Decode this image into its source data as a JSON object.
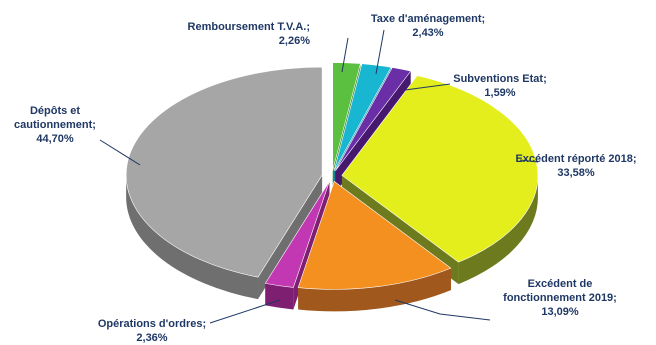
{
  "chart_data": {
    "type": "pie",
    "title": "",
    "slices": [
      {
        "name": "Remboursement T.V.A.",
        "value": 2.26,
        "label": "2,26%",
        "color": "#5bbf3f",
        "side": "#3e8c2a"
      },
      {
        "name": "Taxe d'aménagement",
        "value": 2.43,
        "label": "2,43%",
        "color": "#19b6d2",
        "side": "#0f8399"
      },
      {
        "name": "Subventions Etat",
        "value": 1.59,
        "label": "1,59%",
        "color": "#6a2ea6",
        "side": "#46196f"
      },
      {
        "name": "Excédent réporté 2018",
        "value": 33.58,
        "label": "33,58%",
        "color": "#e3ee1c",
        "side": "#6d7b1e"
      },
      {
        "name": "Excédent de fonctionnement 2019",
        "value": 13.09,
        "label": "13,09%",
        "color": "#f4901f",
        "side": "#a0581c"
      },
      {
        "name": "Opérations d'ordres",
        "value": 2.36,
        "label": "2,36%",
        "color": "#c238b2",
        "side": "#7e1f72"
      },
      {
        "name": "Dépôts et cautionnement",
        "value": 44.7,
        "label": "44,70%",
        "color": "#a6a6a6",
        "side": "#6f6f6f"
      }
    ],
    "label_lines": [
      [
        "Remboursement T.V.A.;",
        "2,26%"
      ],
      [
        "Taxe d'aménagement;",
        "2,43%"
      ],
      [
        "Subventions Etat;",
        "1,59%"
      ],
      [
        "Excédent réporté 2018;",
        "33,58%"
      ],
      [
        "Excédent de",
        "fonctionnement 2019;",
        "13,09%"
      ],
      [
        "Opérations d'ordres;",
        "2,36%"
      ],
      [
        "Dépôts et",
        "cautionnement;",
        "44,70%"
      ]
    ]
  }
}
